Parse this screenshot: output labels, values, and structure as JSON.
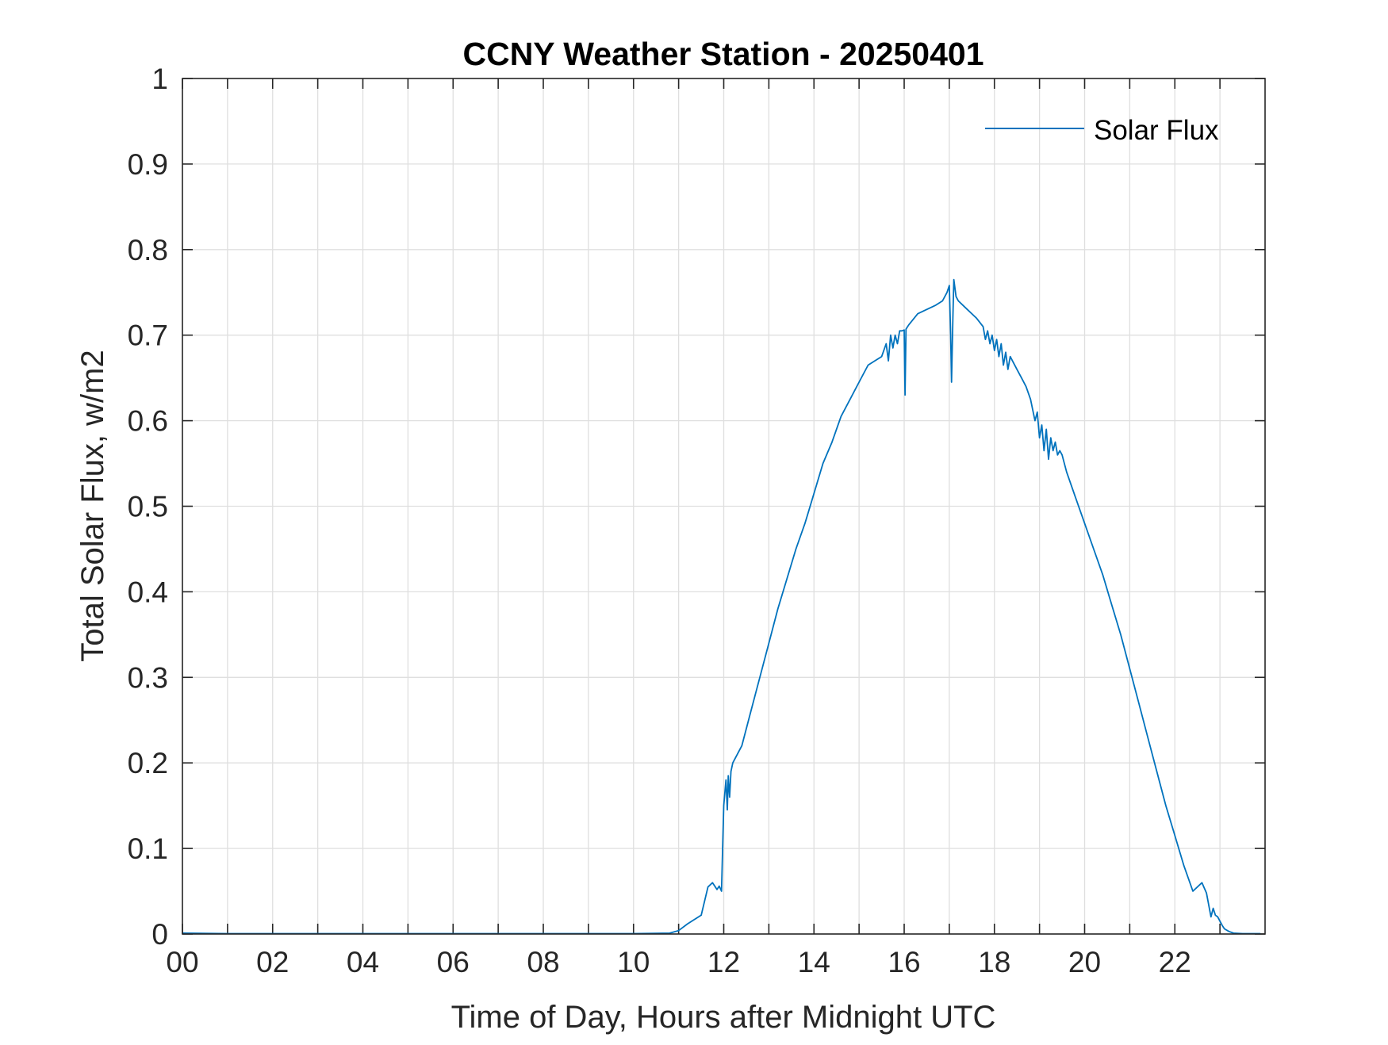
{
  "chart_data": {
    "type": "line",
    "title": "CCNY Weather Station - 20250401",
    "xlabel": "Time of Day, Hours after Midnight UTC",
    "ylabel": "Total Solar Flux, w/m2",
    "xlim": [
      0,
      24
    ],
    "ylim": [
      0,
      1
    ],
    "x_ticks": [
      0,
      2,
      4,
      6,
      8,
      10,
      12,
      14,
      16,
      18,
      20,
      22
    ],
    "x_tick_labels": [
      "00",
      "02",
      "04",
      "06",
      "08",
      "10",
      "12",
      "14",
      "16",
      "18",
      "20",
      "22"
    ],
    "x_minor_ticks": [
      1,
      3,
      5,
      7,
      9,
      11,
      13,
      15,
      17,
      19,
      21,
      23
    ],
    "y_ticks": [
      0,
      0.1,
      0.2,
      0.3,
      0.4,
      0.5,
      0.6,
      0.7,
      0.8,
      0.9,
      1
    ],
    "y_tick_labels": [
      "0",
      "0.1",
      "0.2",
      "0.3",
      "0.4",
      "0.5",
      "0.6",
      "0.7",
      "0.8",
      "0.9",
      "1"
    ],
    "grid": true,
    "legend": {
      "position": "top-right",
      "entries": [
        "Solar Flux"
      ]
    },
    "colors": {
      "series": "#0072BD",
      "axes": "#262626",
      "grid": "#dfdfdf"
    },
    "series": [
      {
        "name": "Solar Flux",
        "x": [
          0,
          1,
          2,
          3,
          4,
          5,
          6,
          7,
          8,
          9,
          10,
          10.8,
          11.0,
          11.2,
          11.5,
          11.65,
          11.75,
          11.85,
          11.9,
          11.95,
          11.97,
          12.0,
          12.05,
          12.08,
          12.1,
          12.13,
          12.16,
          12.2,
          12.4,
          12.6,
          12.8,
          13.0,
          13.2,
          13.4,
          13.6,
          13.8,
          14.0,
          14.2,
          14.4,
          14.6,
          14.8,
          15.0,
          15.2,
          15.35,
          15.5,
          15.6,
          15.65,
          15.7,
          15.75,
          15.8,
          15.85,
          15.9,
          15.95,
          16.0,
          16.02,
          16.04,
          16.1,
          16.3,
          16.5,
          16.7,
          16.85,
          16.95,
          17.0,
          17.03,
          17.05,
          17.08,
          17.1,
          17.15,
          17.2,
          17.4,
          17.6,
          17.75,
          17.8,
          17.85,
          17.9,
          17.95,
          18.0,
          18.05,
          18.1,
          18.15,
          18.2,
          18.25,
          18.3,
          18.35,
          18.4,
          18.5,
          18.6,
          18.7,
          18.8,
          18.9,
          18.95,
          19.0,
          19.05,
          19.1,
          19.15,
          19.2,
          19.25,
          19.3,
          19.35,
          19.4,
          19.45,
          19.5,
          19.6,
          19.8,
          20.0,
          20.2,
          20.4,
          20.6,
          20.8,
          21.0,
          21.2,
          21.4,
          21.6,
          21.8,
          22.0,
          22.2,
          22.4,
          22.6,
          22.7,
          22.8,
          22.85,
          22.9,
          22.95,
          23.0,
          23.05,
          23.1,
          23.2,
          23.3,
          23.5,
          23.7,
          23.9
        ],
        "y": [
          0.001,
          0.0005,
          0.0005,
          0.0005,
          0.0005,
          0.0005,
          0.0005,
          0.0005,
          0.0005,
          0.0005,
          0.0005,
          0.001,
          0.004,
          0.012,
          0.022,
          0.055,
          0.06,
          0.052,
          0.056,
          0.05,
          0.09,
          0.15,
          0.18,
          0.145,
          0.185,
          0.16,
          0.19,
          0.2,
          0.22,
          0.26,
          0.3,
          0.34,
          0.38,
          0.415,
          0.45,
          0.48,
          0.515,
          0.55,
          0.575,
          0.605,
          0.625,
          0.645,
          0.665,
          0.67,
          0.675,
          0.69,
          0.67,
          0.7,
          0.685,
          0.7,
          0.69,
          0.705,
          0.705,
          0.706,
          0.63,
          0.707,
          0.712,
          0.725,
          0.73,
          0.735,
          0.74,
          0.75,
          0.758,
          0.7,
          0.645,
          0.72,
          0.765,
          0.745,
          0.74,
          0.73,
          0.72,
          0.71,
          0.695,
          0.705,
          0.69,
          0.7,
          0.682,
          0.695,
          0.675,
          0.69,
          0.665,
          0.68,
          0.66,
          0.675,
          0.67,
          0.66,
          0.65,
          0.64,
          0.625,
          0.6,
          0.61,
          0.58,
          0.595,
          0.565,
          0.59,
          0.555,
          0.58,
          0.565,
          0.575,
          0.56,
          0.565,
          0.56,
          0.54,
          0.51,
          0.48,
          0.45,
          0.42,
          0.385,
          0.35,
          0.31,
          0.27,
          0.23,
          0.19,
          0.15,
          0.115,
          0.08,
          0.05,
          0.06,
          0.048,
          0.02,
          0.03,
          0.022,
          0.02,
          0.015,
          0.01,
          0.006,
          0.003,
          0.001,
          0.0005,
          0.0005,
          0.0005
        ]
      }
    ]
  }
}
